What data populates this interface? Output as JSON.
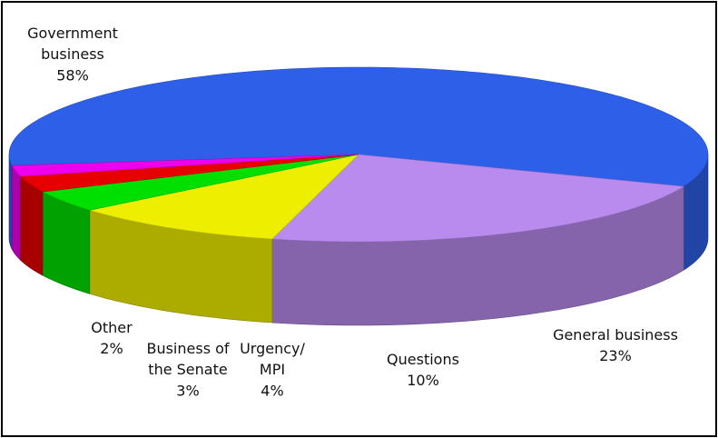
{
  "chart_data": {
    "type": "pie",
    "style": "3d-exploded-none",
    "title": "",
    "slices": [
      {
        "name": "Government business",
        "label_lines": [
          "Government",
          "business"
        ],
        "value": 58,
        "value_label": "58%",
        "color": "#2E5FE8"
      },
      {
        "name": "General business",
        "label_lines": [
          "General business"
        ],
        "value": 23,
        "value_label": "23%",
        "color": "#B98BEF"
      },
      {
        "name": "Questions",
        "label_lines": [
          "Questions"
        ],
        "value": 10,
        "value_label": "10%",
        "color": "#EEEE00"
      },
      {
        "name": "Urgency/MPI",
        "label_lines": [
          "Urgency/",
          "MPI"
        ],
        "value": 4,
        "value_label": "4%",
        "color": "#00E000"
      },
      {
        "name": "Business of the Senate",
        "label_lines": [
          "Business of",
          "the Senate"
        ],
        "value": 3,
        "value_label": "3%",
        "color": "#E60000"
      },
      {
        "name": "Other",
        "label_lines": [
          "Other"
        ],
        "value": 2,
        "value_label": "2%",
        "color": "#EE00EE"
      }
    ]
  }
}
